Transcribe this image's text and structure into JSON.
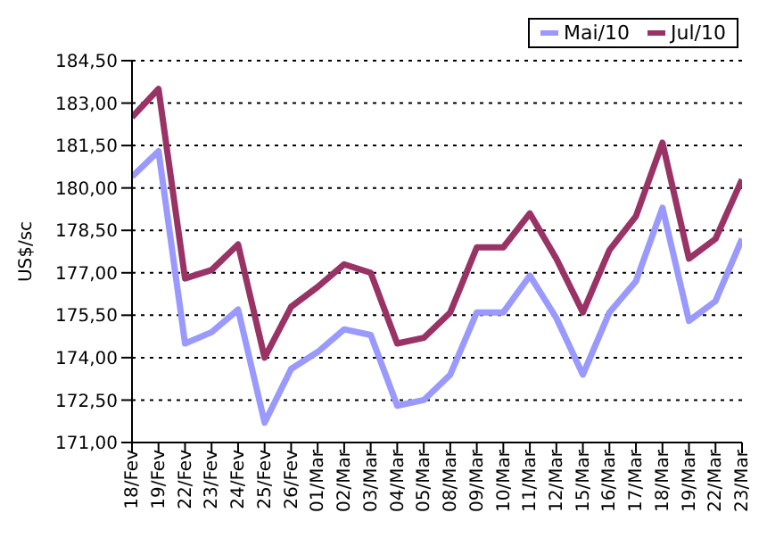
{
  "chart_data": {
    "type": "line",
    "ylabel": "US$/sc",
    "categories": [
      "18/Fev",
      "19/Fev",
      "22/Fev",
      "23/Fev",
      "24/Fev",
      "25/Fev",
      "26/Fev",
      "01/Mar",
      "02/Mar",
      "03/Mar",
      "04/Mar",
      "05/Mar",
      "08/Mar",
      "09/Mar",
      "10/Mar",
      "11/Mar",
      "12/Mar",
      "15/Mar",
      "16/Mar",
      "17/Mar",
      "18/Mar",
      "19/Mar",
      "22/Mar",
      "23/Mar"
    ],
    "series": [
      {
        "name": "Mai/10",
        "color": "#9999ff",
        "values": [
          180.4,
          181.3,
          174.5,
          174.9,
          175.7,
          171.7,
          173.6,
          174.2,
          175.0,
          174.8,
          172.3,
          172.5,
          173.4,
          175.6,
          175.6,
          176.9,
          175.4,
          173.4,
          175.6,
          176.7,
          179.3,
          175.3,
          176.0,
          178.2
        ]
      },
      {
        "name": "Jul/10",
        "color": "#993366",
        "values": [
          182.5,
          183.5,
          176.8,
          177.1,
          178.0,
          174.0,
          175.8,
          176.5,
          177.3,
          177.0,
          174.5,
          174.7,
          175.6,
          177.9,
          177.9,
          179.1,
          177.5,
          175.6,
          177.8,
          179.0,
          181.6,
          177.5,
          178.2,
          180.3
        ]
      }
    ],
    "ylim": [
      171,
      184.5
    ],
    "yticks": [
      {
        "value": 171,
        "label": "171,00"
      },
      {
        "value": 172.5,
        "label": "172,50"
      },
      {
        "value": 174,
        "label": "174,00"
      },
      {
        "value": 175.5,
        "label": "175,50"
      },
      {
        "value": 177,
        "label": "177,00"
      },
      {
        "value": 178.5,
        "label": "178,50"
      },
      {
        "value": 180,
        "label": "180,00"
      },
      {
        "value": 181.5,
        "label": "181,50"
      },
      {
        "value": 183,
        "label": "183,00"
      },
      {
        "value": 184.5,
        "label": "184,50"
      }
    ],
    "grid": "y",
    "legend": "top right",
    "marker": "none",
    "line_style": "solid"
  }
}
